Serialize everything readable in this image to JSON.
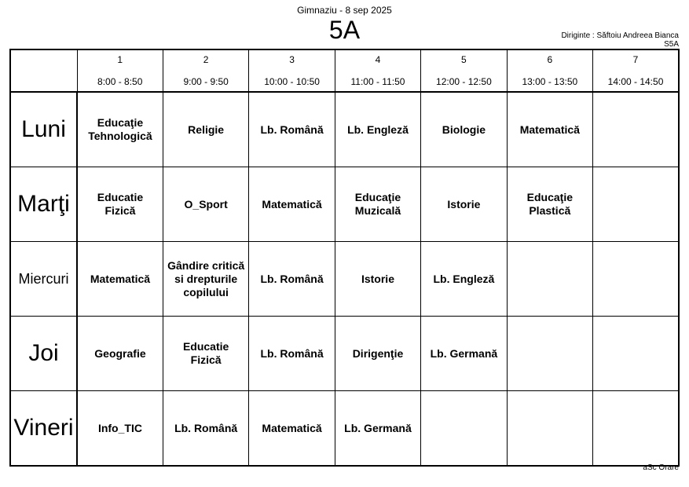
{
  "header": {
    "school": "Gimnaziu - 8 sep 2025",
    "class": "5A",
    "teacher": "Diriginte : Săftoiu Andreea Bianca",
    "room": "S5A"
  },
  "periods": [
    {
      "num": "1",
      "time": "8:00 - 8:50"
    },
    {
      "num": "2",
      "time": "9:00 - 9:50"
    },
    {
      "num": "3",
      "time": "10:00 - 10:50"
    },
    {
      "num": "4",
      "time": "11:00 - 11:50"
    },
    {
      "num": "5",
      "time": "12:00 - 12:50"
    },
    {
      "num": "6",
      "time": "13:00 - 13:50"
    },
    {
      "num": "7",
      "time": "14:00 - 14:50"
    }
  ],
  "days": [
    {
      "name": "Luni",
      "subjects": [
        "Educaţie Tehnologică",
        "Religie",
        "Lb. Română",
        "Lb. Engleză",
        "Biologie",
        "Matematică",
        ""
      ]
    },
    {
      "name": "Marţi",
      "subjects": [
        "Educatie Fizică",
        "O_Sport",
        "Matematică",
        "Educaţie Muzicală",
        "Istorie",
        "Educaţie Plastică",
        ""
      ]
    },
    {
      "name": "Miercuri",
      "subjects": [
        "Matematică",
        "Gândire critică si drepturile copilului",
        "Lb. Română",
        "Istorie",
        "Lb. Engleză",
        "",
        ""
      ]
    },
    {
      "name": "Joi",
      "subjects": [
        "Geografie",
        "Educatie Fizică",
        "Lb. Română",
        "Dirigenţie",
        "Lb. Germană",
        "",
        ""
      ]
    },
    {
      "name": "Vineri",
      "subjects": [
        "Info_TIC",
        "Lb. Română",
        "Matematică",
        "Lb. Germană",
        "",
        "",
        ""
      ]
    }
  ],
  "footer": "aSc Orare"
}
